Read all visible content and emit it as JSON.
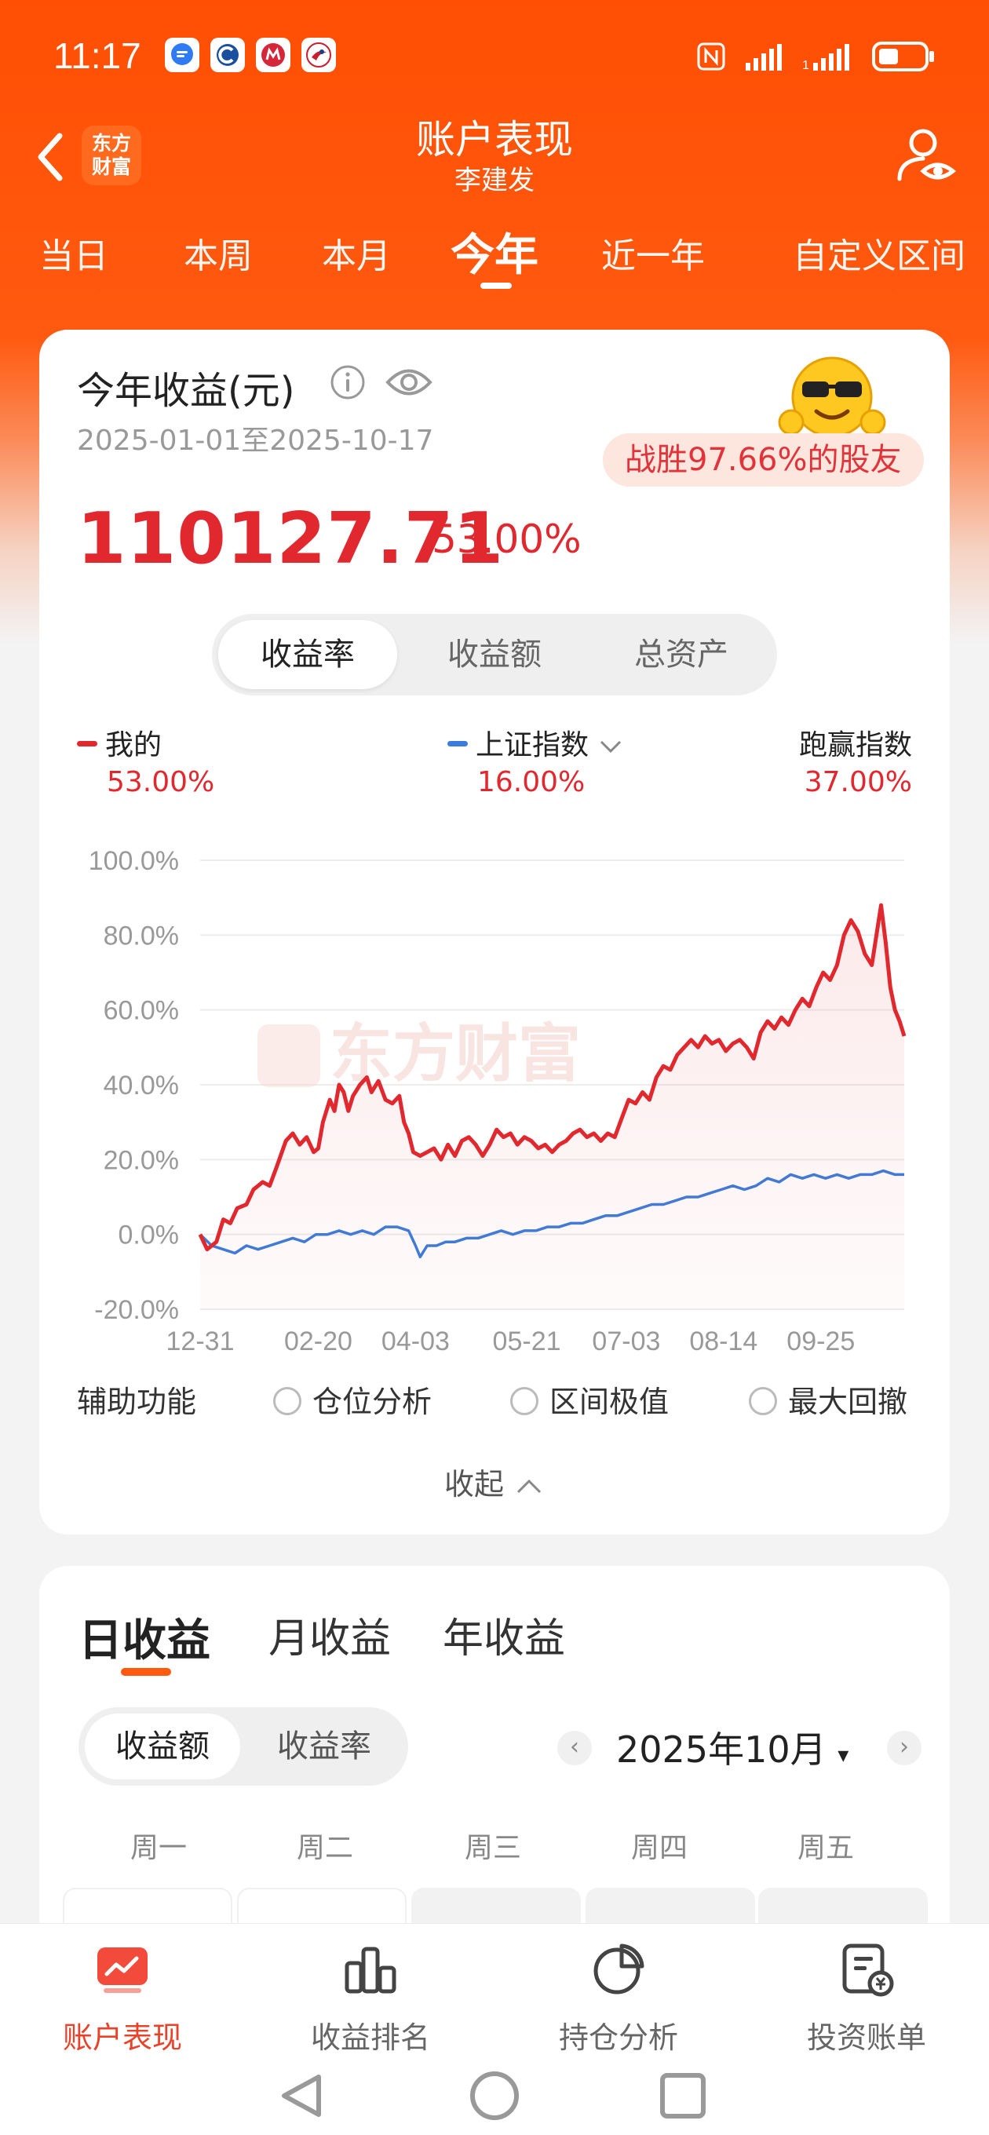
{
  "status_bar": {
    "time": "11:17",
    "apps": [
      "chat-bubble-icon",
      "c-logo-icon",
      "mail-logo-icon",
      "bird-logo-icon"
    ],
    "right_icons": [
      "nfc-icon",
      "signal-icon",
      "wifi-signal-icon",
      "battery-icon"
    ]
  },
  "header": {
    "logo_line1": "东方",
    "logo_line2": "财富",
    "title": "账户表现",
    "subtitle": "李建发"
  },
  "period_tabs": [
    "当日",
    "本周",
    "本月",
    "今年",
    "近一年",
    "自定义区间"
  ],
  "active_period": "今年",
  "summary": {
    "title": "今年收益(元)",
    "date_range": "2025-01-01至2025-10-17",
    "rank_text": "战胜97.66%的股友",
    "amount": "110127.71",
    "rate": "53.00%"
  },
  "metric_tabs": [
    "收益率",
    "收益额",
    "总资产"
  ],
  "legend": {
    "mine": {
      "label": "我的",
      "value": "53.00%",
      "color": "#e0282e"
    },
    "index": {
      "label": "上证指数",
      "value": "16.00%",
      "color": "#3b7ddd"
    },
    "beat": {
      "label": "跑赢指数",
      "value": "37.00%"
    }
  },
  "chart_data": {
    "type": "line",
    "watermark": "东方财富",
    "y_ticks": [
      "100.0%",
      "80.0%",
      "60.0%",
      "40.0%",
      "20.0%",
      "0.0%",
      "-20.0%"
    ],
    "ylim": [
      -20,
      100
    ],
    "x_ticks": [
      "12-31",
      "02-20",
      "04-03",
      "05-21",
      "07-03",
      "08-14",
      "09-25"
    ],
    "x_tick_days": [
      0,
      51,
      93,
      141,
      184,
      226,
      268
    ],
    "series": [
      {
        "name": "我的",
        "color": "#e0282e",
        "points": [
          [
            0,
            0
          ],
          [
            3,
            -4
          ],
          [
            7,
            -2
          ],
          [
            10,
            4
          ],
          [
            13,
            3
          ],
          [
            16,
            7
          ],
          [
            20,
            8
          ],
          [
            23,
            12
          ],
          [
            27,
            14
          ],
          [
            30,
            13
          ],
          [
            33,
            18
          ],
          [
            37,
            25
          ],
          [
            40,
            27
          ],
          [
            43,
            24
          ],
          [
            46,
            26
          ],
          [
            49,
            22
          ],
          [
            51,
            23
          ],
          [
            53,
            30
          ],
          [
            56,
            36
          ],
          [
            58,
            33
          ],
          [
            60,
            40
          ],
          [
            62,
            38
          ],
          [
            64,
            33
          ],
          [
            66,
            37
          ],
          [
            69,
            40
          ],
          [
            72,
            42
          ],
          [
            74,
            38
          ],
          [
            77,
            41
          ],
          [
            80,
            36
          ],
          [
            83,
            35
          ],
          [
            86,
            37
          ],
          [
            88,
            30
          ],
          [
            90,
            27
          ],
          [
            92,
            22
          ],
          [
            95,
            21
          ],
          [
            98,
            22
          ],
          [
            101,
            23
          ],
          [
            104,
            20
          ],
          [
            107,
            24
          ],
          [
            110,
            21
          ],
          [
            113,
            25
          ],
          [
            116,
            26
          ],
          [
            119,
            24
          ],
          [
            122,
            21
          ],
          [
            125,
            24
          ],
          [
            128,
            28
          ],
          [
            131,
            26
          ],
          [
            134,
            27
          ],
          [
            137,
            24
          ],
          [
            140,
            26
          ],
          [
            143,
            25
          ],
          [
            146,
            23
          ],
          [
            149,
            24
          ],
          [
            152,
            22
          ],
          [
            155,
            24
          ],
          [
            158,
            25
          ],
          [
            161,
            27
          ],
          [
            164,
            28
          ],
          [
            167,
            26
          ],
          [
            170,
            27
          ],
          [
            173,
            25
          ],
          [
            176,
            27
          ],
          [
            179,
            26
          ],
          [
            182,
            31
          ],
          [
            185,
            36
          ],
          [
            188,
            35
          ],
          [
            191,
            38
          ],
          [
            194,
            36
          ],
          [
            197,
            42
          ],
          [
            200,
            45
          ],
          [
            203,
            44
          ],
          [
            206,
            48
          ],
          [
            209,
            50
          ],
          [
            212,
            52
          ],
          [
            215,
            50
          ],
          [
            218,
            53
          ],
          [
            221,
            51
          ],
          [
            224,
            52
          ],
          [
            227,
            49
          ],
          [
            230,
            51
          ],
          [
            233,
            52
          ],
          [
            236,
            50
          ],
          [
            239,
            47
          ],
          [
            242,
            54
          ],
          [
            245,
            57
          ],
          [
            248,
            55
          ],
          [
            251,
            58
          ],
          [
            254,
            56
          ],
          [
            257,
            60
          ],
          [
            260,
            63
          ],
          [
            263,
            61
          ],
          [
            266,
            66
          ],
          [
            269,
            70
          ],
          [
            272,
            68
          ],
          [
            275,
            72
          ],
          [
            278,
            80
          ],
          [
            281,
            84
          ],
          [
            284,
            81
          ],
          [
            287,
            75
          ],
          [
            290,
            72
          ],
          [
            292,
            80
          ],
          [
            294,
            88
          ],
          [
            296,
            78
          ],
          [
            298,
            66
          ],
          [
            300,
            60
          ],
          [
            302,
            57
          ],
          [
            304,
            53
          ]
        ]
      },
      {
        "name": "上证指数",
        "color": "#3b7ddd",
        "points": [
          [
            0,
            0
          ],
          [
            5,
            -3
          ],
          [
            10,
            -4
          ],
          [
            15,
            -5
          ],
          [
            20,
            -3
          ],
          [
            25,
            -4
          ],
          [
            30,
            -3
          ],
          [
            35,
            -2
          ],
          [
            40,
            -1
          ],
          [
            45,
            -2
          ],
          [
            50,
            0
          ],
          [
            55,
            0
          ],
          [
            60,
            1
          ],
          [
            65,
            0
          ],
          [
            70,
            1
          ],
          [
            75,
            0
          ],
          [
            80,
            2
          ],
          [
            85,
            2
          ],
          [
            90,
            1
          ],
          [
            93,
            -3
          ],
          [
            95,
            -6
          ],
          [
            98,
            -3
          ],
          [
            102,
            -3
          ],
          [
            106,
            -2
          ],
          [
            110,
            -2
          ],
          [
            115,
            -1
          ],
          [
            120,
            -1
          ],
          [
            125,
            0
          ],
          [
            130,
            1
          ],
          [
            135,
            0
          ],
          [
            140,
            1
          ],
          [
            145,
            1
          ],
          [
            150,
            2
          ],
          [
            155,
            2
          ],
          [
            160,
            3
          ],
          [
            165,
            3
          ],
          [
            170,
            4
          ],
          [
            175,
            5
          ],
          [
            180,
            5
          ],
          [
            185,
            6
          ],
          [
            190,
            7
          ],
          [
            195,
            8
          ],
          [
            200,
            8
          ],
          [
            205,
            9
          ],
          [
            210,
            10
          ],
          [
            215,
            10
          ],
          [
            220,
            11
          ],
          [
            225,
            12
          ],
          [
            230,
            13
          ],
          [
            235,
            12
          ],
          [
            240,
            13
          ],
          [
            245,
            15
          ],
          [
            250,
            14
          ],
          [
            255,
            16
          ],
          [
            260,
            15
          ],
          [
            265,
            16
          ],
          [
            270,
            15
          ],
          [
            275,
            16
          ],
          [
            280,
            15
          ],
          [
            285,
            16
          ],
          [
            290,
            16
          ],
          [
            295,
            17
          ],
          [
            300,
            16
          ],
          [
            304,
            16
          ]
        ]
      }
    ],
    "x_max": 304
  },
  "aux": {
    "label": "辅助功能",
    "options": [
      "仓位分析",
      "区间极值",
      "最大回撤"
    ],
    "collapse": "收起"
  },
  "daily": {
    "tabs": [
      "日收益",
      "月收益",
      "年收益"
    ],
    "active_tab": "日收益",
    "mode_tabs": [
      "收益额",
      "收益率"
    ],
    "month": "2025年10月",
    "weekdays": [
      "周一",
      "周二",
      "周三",
      "周四",
      "周五"
    ]
  },
  "bottom_nav": [
    {
      "label": "账户表现",
      "icon": "chart-card-icon",
      "active": true
    },
    {
      "label": "收益排名",
      "icon": "bar-chart-icon",
      "active": false
    },
    {
      "label": "持仓分析",
      "icon": "pie-chart-icon",
      "active": false
    },
    {
      "label": "投资账单",
      "icon": "bill-icon",
      "active": false
    }
  ],
  "colors": {
    "brand": "#ff5a10",
    "rise": "#e0282e",
    "index": "#3b7ddd"
  }
}
